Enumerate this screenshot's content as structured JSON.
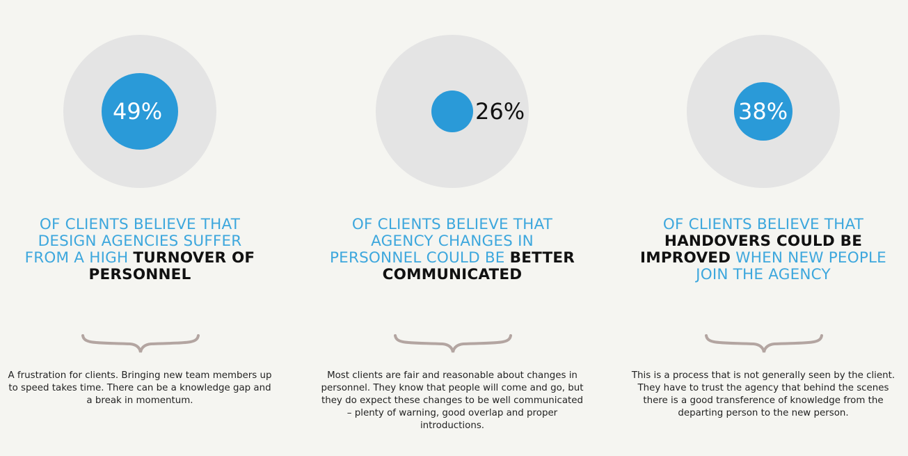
{
  "colors": {
    "background": "#f5f5f1",
    "disc": "#e4e4e4",
    "accent_blue": "#2a9ad8",
    "headline_blue": "#3da7dd",
    "emphasis": "#111111",
    "brace": "#b3a5a1"
  },
  "stats": [
    {
      "value": "49%",
      "fraction": 0.49,
      "headline_parts": [
        "OF CLIENTS BELIEVE THAT",
        "DESIGN AGENCIES SUFFER",
        "FROM A HIGH ",
        "TURNOVER OF",
        "PERSONNEL"
      ],
      "description": "A frustration for clients. Bringing new team members up to speed takes time. There can be a knowledge gap and a break in momentum."
    },
    {
      "value": "26%",
      "fraction": 0.26,
      "headline_parts": [
        "OF CLIENTS BELIEVE THAT",
        "AGENCY CHANGES IN",
        "PERSONNEL COULD BE ",
        "BETTER",
        "COMMUNICATED"
      ],
      "description": "Most clients are fair and reasonable about changes in personnel. They know that people will come and go, but they do expect these changes to be well communicated – plenty of warning, good overlap and proper introductions."
    },
    {
      "value": "38%",
      "fraction": 0.38,
      "headline_parts": [
        "OF CLIENTS BELIEVE THAT",
        "HANDOVERS COULD BE",
        "IMPROVED",
        " WHEN NEW PEOPLE",
        "JOIN THE AGENCY"
      ],
      "description": "This is a process that is not generally seen by the client. They have to trust the agency that behind the scenes there is a good transference of knowledge from the departing person to the new person."
    }
  ]
}
